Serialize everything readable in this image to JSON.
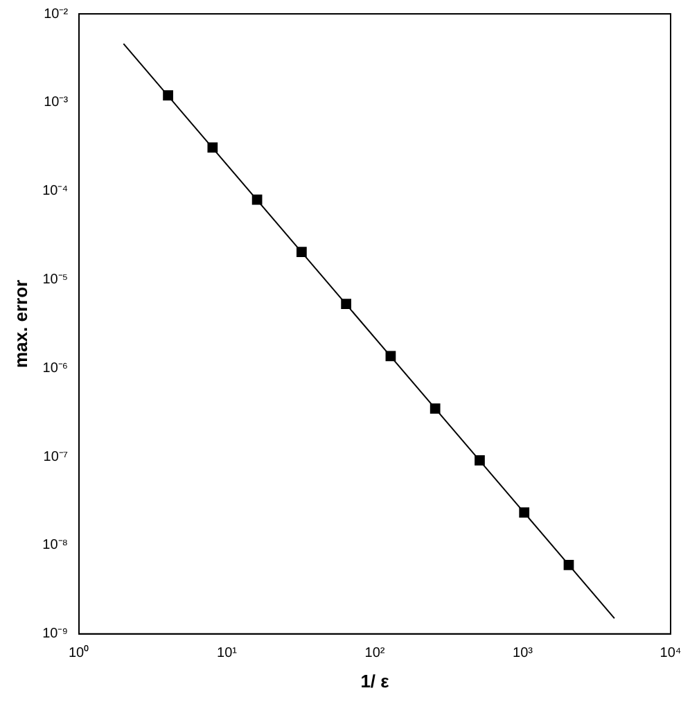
{
  "chart_data": {
    "type": "scatter",
    "xlabel": "1/ ε",
    "ylabel": "max. error",
    "log": "xy",
    "grid": false,
    "legend": false,
    "marker": "square",
    "xlim": [
      1,
      10000
    ],
    "xticks": [
      {
        "value": 1,
        "label": "10⁰"
      },
      {
        "value": 10,
        "label": "10¹"
      },
      {
        "value": 100,
        "label": "10²"
      },
      {
        "value": 1000,
        "label": "10³"
      },
      {
        "value": 10000,
        "label": "10⁴"
      }
    ],
    "ylim": [
      1e-09,
      0.01
    ],
    "yticks": [
      {
        "value": 1e-09,
        "label": "10⁻⁹"
      },
      {
        "value": 1e-08,
        "label": "10⁻⁸"
      },
      {
        "value": 1e-07,
        "label": "10⁻⁷"
      },
      {
        "value": 1e-06,
        "label": "10⁻⁶"
      },
      {
        "value": 1e-05,
        "label": "10⁻⁵"
      },
      {
        "value": 0.0001,
        "label": "10⁻⁴"
      },
      {
        "value": 0.001,
        "label": "10⁻³"
      },
      {
        "value": 0.01,
        "label": "10⁻²"
      }
    ],
    "series": [
      {
        "type": "line",
        "color": "#000000",
        "marker": "none",
        "line_style": "solid",
        "x": [
          2,
          4170
        ],
        "values": [
          0.0046,
          1.5e-09
        ]
      },
      {
        "color": "#000000",
        "x": [
          4,
          8,
          16,
          32,
          64,
          128,
          256,
          512,
          1024,
          2048
        ],
        "values": [
          0.0012,
          0.00031,
          8e-05,
          2.05e-05,
          5.3e-06,
          1.37e-06,
          3.5e-07,
          9.1e-08,
          2.35e-08,
          6e-09
        ]
      }
    ]
  }
}
